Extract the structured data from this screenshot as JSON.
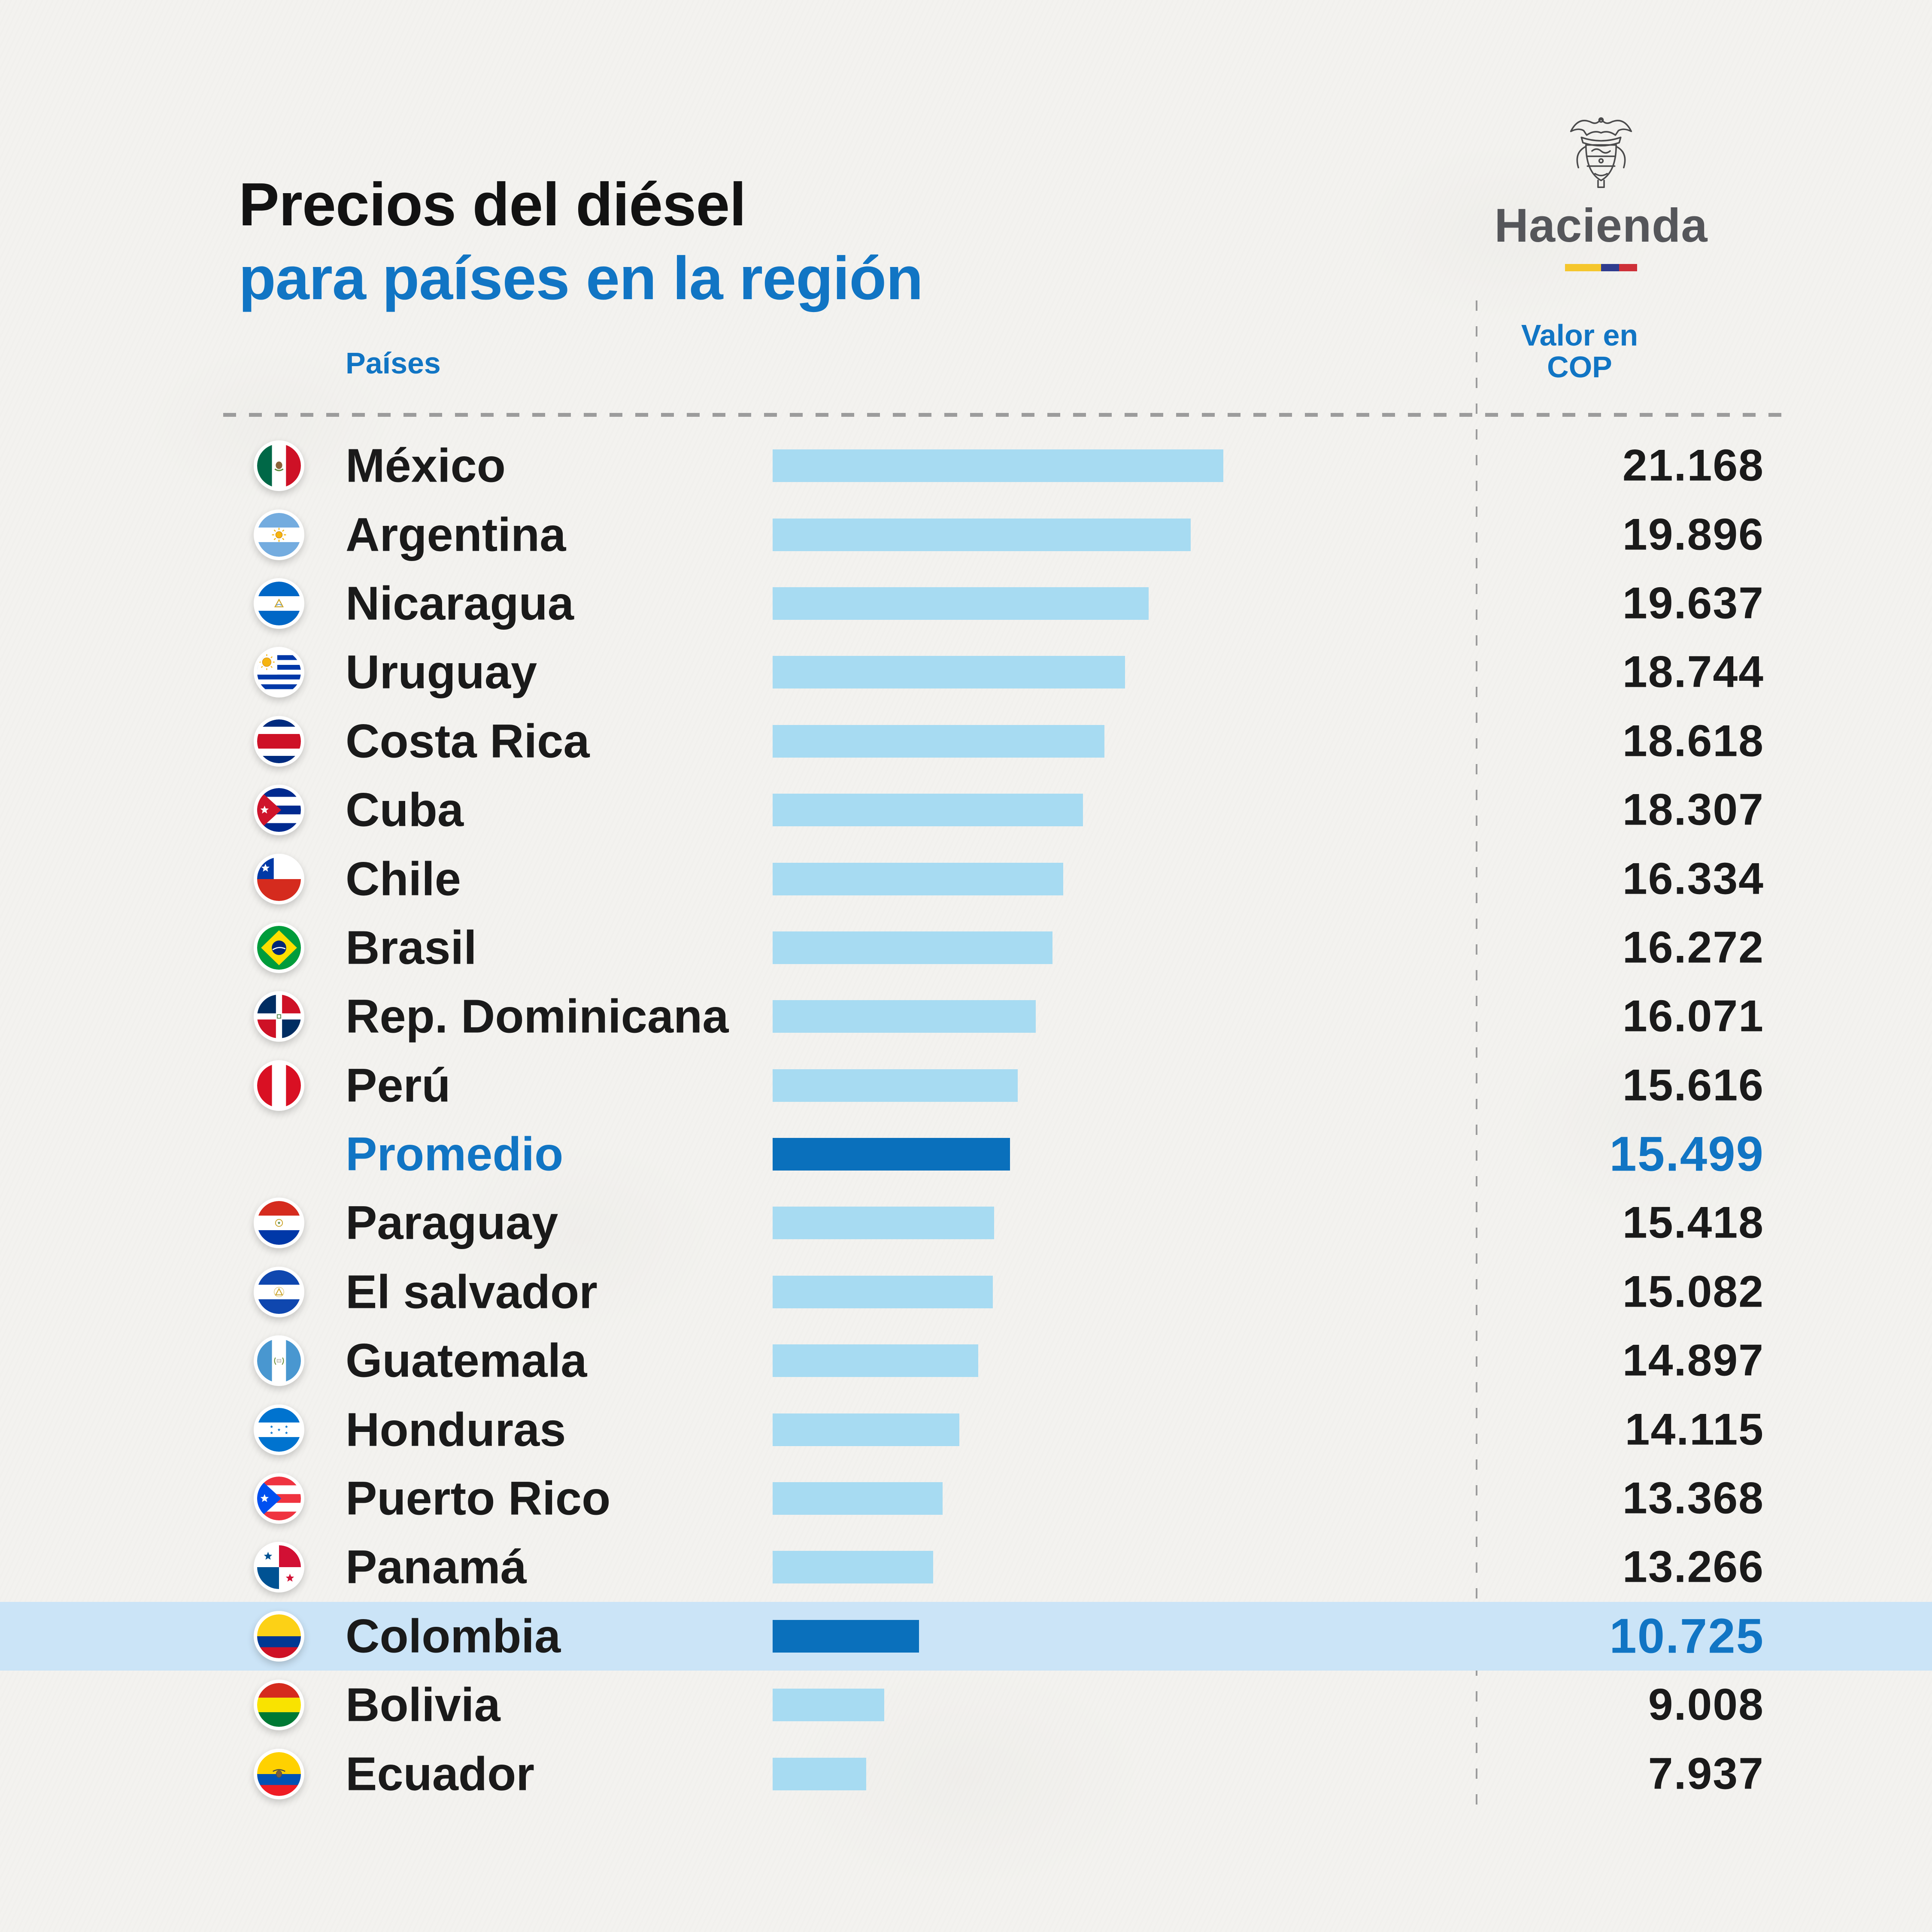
{
  "title": {
    "line1": "Precios del diésel",
    "line2": "para países en la región"
  },
  "logo": {
    "org": "Hacienda",
    "crest_icon": "colombia-coat-of-arms-icon",
    "tricolor_colors": [
      "#F5C62C",
      "#2F3C8E",
      "#CE3038"
    ]
  },
  "columns": {
    "country_header": "Países",
    "value_header_line1": "Valor en",
    "value_header_line2": "COP"
  },
  "colors": {
    "background": "#F3F2EF",
    "title_black": "#121212",
    "accent_blue": "#1175C4",
    "bar_light_blue": "#A7DBF2",
    "bar_dark_blue": "#0A70BC",
    "highlight_band": "#CBE4F7",
    "hacienda_gray": "#55565A",
    "dash_gray": "#9C9C9C",
    "label_dark": "#1A1A1A"
  },
  "chart_data": {
    "type": "bar",
    "orientation": "horizontal",
    "title": "Precios del diésel para países en la región",
    "value_unit": "COP",
    "legend": "none",
    "grid": false,
    "value_axis_labels_hidden": true,
    "rows": [
      {
        "label": "México",
        "flag": "mexico",
        "value": 21168,
        "value_text": "21.168",
        "bar_fraction": 1.0,
        "is_average": false,
        "highlighted": false
      },
      {
        "label": "Argentina",
        "flag": "argentina",
        "value": 19896,
        "value_text": "19.896",
        "bar_fraction": 0.928,
        "is_average": false,
        "highlighted": false
      },
      {
        "label": "Nicaragua",
        "flag": "nicaragua",
        "value": 19637,
        "value_text": "19.637",
        "bar_fraction": 0.834,
        "is_average": false,
        "highlighted": false
      },
      {
        "label": "Uruguay",
        "flag": "uruguay",
        "value": 18744,
        "value_text": "18.744",
        "bar_fraction": 0.782,
        "is_average": false,
        "highlighted": false
      },
      {
        "label": "Costa Rica",
        "flag": "costarica",
        "value": 18618,
        "value_text": "18.618",
        "bar_fraction": 0.736,
        "is_average": false,
        "highlighted": false
      },
      {
        "label": "Cuba",
        "flag": "cuba",
        "value": 18307,
        "value_text": "18.307",
        "bar_fraction": 0.689,
        "is_average": false,
        "highlighted": false
      },
      {
        "label": "Chile",
        "flag": "chile",
        "value": 16334,
        "value_text": "16.334",
        "bar_fraction": 0.645,
        "is_average": false,
        "highlighted": false
      },
      {
        "label": "Brasil",
        "flag": "brasil",
        "value": 16272,
        "value_text": "16.272",
        "bar_fraction": 0.621,
        "is_average": false,
        "highlighted": false
      },
      {
        "label": "Rep. Dominicana",
        "flag": "dominicana",
        "value": 16071,
        "value_text": "16.071",
        "bar_fraction": 0.584,
        "is_average": false,
        "highlighted": false
      },
      {
        "label": "Perú",
        "flag": "peru",
        "value": 15616,
        "value_text": "15.616",
        "bar_fraction": 0.544,
        "is_average": false,
        "highlighted": false
      },
      {
        "label": "Promedio",
        "flag": null,
        "value": 15499,
        "value_text": "15.499",
        "bar_fraction": 0.527,
        "is_average": true,
        "highlighted": false
      },
      {
        "label": "Paraguay",
        "flag": "paraguay",
        "value": 15418,
        "value_text": "15.418",
        "bar_fraction": 0.491,
        "is_average": false,
        "highlighted": false
      },
      {
        "label": "El salvador",
        "flag": "elsalvador",
        "value": 15082,
        "value_text": "15.082",
        "bar_fraction": 0.489,
        "is_average": false,
        "highlighted": false
      },
      {
        "label": "Guatemala",
        "flag": "guatemala",
        "value": 14897,
        "value_text": "14.897",
        "bar_fraction": 0.456,
        "is_average": false,
        "highlighted": false
      },
      {
        "label": "Honduras",
        "flag": "honduras",
        "value": 14115,
        "value_text": "14.115",
        "bar_fraction": 0.414,
        "is_average": false,
        "highlighted": false
      },
      {
        "label": "Puerto Rico",
        "flag": "puertorico",
        "value": 13368,
        "value_text": "13.368",
        "bar_fraction": 0.377,
        "is_average": false,
        "highlighted": false
      },
      {
        "label": "Panamá",
        "flag": "panama",
        "value": 13266,
        "value_text": "13.266",
        "bar_fraction": 0.356,
        "is_average": false,
        "highlighted": false
      },
      {
        "label": "Colombia",
        "flag": "colombia",
        "value": 10725,
        "value_text": "10.725",
        "bar_fraction": 0.325,
        "is_average": false,
        "highlighted": true
      },
      {
        "label": "Bolivia",
        "flag": "bolivia",
        "value": 9008,
        "value_text": "9.008",
        "bar_fraction": 0.248,
        "is_average": false,
        "highlighted": false
      },
      {
        "label": "Ecuador",
        "flag": "ecuador",
        "value": 7937,
        "value_text": "7.937",
        "bar_fraction": 0.208,
        "is_average": false,
        "highlighted": false
      }
    ]
  }
}
